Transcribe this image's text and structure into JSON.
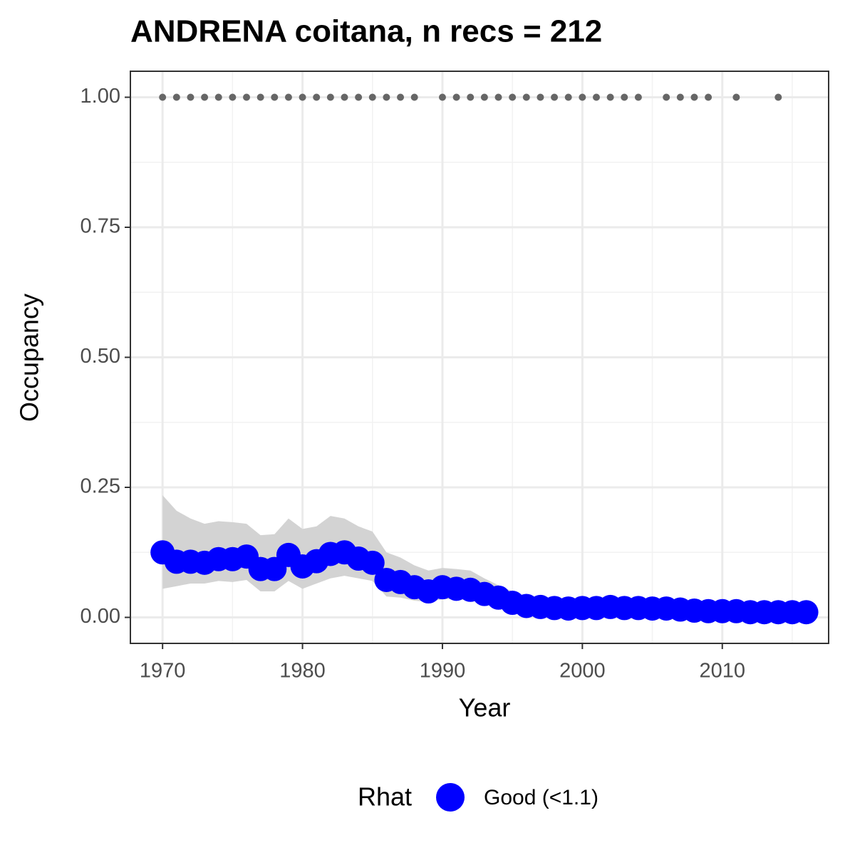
{
  "chart_data": {
    "type": "scatter",
    "title": "ANDRENA coitana, n recs = 212",
    "x_label": "Year",
    "y_label": "Occupancy",
    "xlim": [
      1967.7,
      2017.6
    ],
    "ylim": [
      -0.05,
      1.05
    ],
    "xticks": [
      1970,
      1980,
      1990,
      2000,
      2010
    ],
    "yticks": [
      {
        "value": 0,
        "label": "0.00"
      },
      {
        "value": 0.25,
        "label": "0.25"
      },
      {
        "value": 0.5,
        "label": "0.50"
      },
      {
        "value": 0.75,
        "label": "0.75"
      },
      {
        "value": 1,
        "label": "1.00"
      }
    ],
    "grid": true,
    "legend_title": "Rhat",
    "legend_position": "bottom",
    "x": [
      1970,
      1971,
      1972,
      1973,
      1974,
      1975,
      1976,
      1977,
      1978,
      1979,
      1980,
      1981,
      1982,
      1983,
      1984,
      1985,
      1986,
      1987,
      1988,
      1989,
      1990,
      1991,
      1992,
      1993,
      1994,
      1995,
      1996,
      1997,
      1998,
      1999,
      2000,
      2001,
      2002,
      2003,
      2004,
      2005,
      2006,
      2007,
      2008,
      2009,
      2010,
      2011,
      2012,
      2013,
      2014,
      2015,
      2016
    ],
    "series": [
      {
        "name": "Good (<1.1)",
        "color": "#0000ff",
        "values": [
          0.125,
          0.107,
          0.107,
          0.105,
          0.112,
          0.112,
          0.117,
          0.093,
          0.093,
          0.12,
          0.098,
          0.108,
          0.122,
          0.125,
          0.113,
          0.105,
          0.072,
          0.068,
          0.058,
          0.05,
          0.058,
          0.055,
          0.053,
          0.045,
          0.038,
          0.028,
          0.022,
          0.02,
          0.018,
          0.017,
          0.018,
          0.018,
          0.02,
          0.018,
          0.018,
          0.017,
          0.017,
          0.015,
          0.013,
          0.012,
          0.012,
          0.012,
          0.01,
          0.01,
          0.01,
          0.01,
          0.01
        ]
      }
    ],
    "band": {
      "color": "#d3d3d3",
      "lower": [
        0.055,
        0.06,
        0.065,
        0.065,
        0.07,
        0.068,
        0.072,
        0.05,
        0.05,
        0.07,
        0.055,
        0.065,
        0.075,
        0.08,
        0.075,
        0.07,
        0.04,
        0.038,
        0.032,
        0.03,
        0.035,
        0.035,
        0.033,
        0.025,
        0.02,
        0.015,
        0.012,
        0.01,
        0.01,
        0.009,
        0.009,
        0.01,
        0.01,
        0.009,
        0.009,
        0.008,
        0.008,
        0.007,
        0.006,
        0.005,
        0.005,
        0.005,
        0.004,
        0.004,
        0.004,
        0.004,
        0.004
      ],
      "upper": [
        0.235,
        0.205,
        0.19,
        0.18,
        0.185,
        0.183,
        0.18,
        0.158,
        0.16,
        0.19,
        0.17,
        0.175,
        0.195,
        0.19,
        0.175,
        0.165,
        0.125,
        0.115,
        0.1,
        0.09,
        0.095,
        0.093,
        0.09,
        0.075,
        0.062,
        0.05,
        0.04,
        0.037,
        0.035,
        0.033,
        0.035,
        0.035,
        0.037,
        0.035,
        0.034,
        0.033,
        0.033,
        0.03,
        0.028,
        0.026,
        0.026,
        0.026,
        0.024,
        0.024,
        0.024,
        0.024,
        0.024
      ]
    },
    "records": {
      "color": "#666666",
      "x": [
        1970,
        1971,
        1972,
        1973,
        1974,
        1975,
        1976,
        1977,
        1978,
        1979,
        1980,
        1981,
        1982,
        1983,
        1984,
        1985,
        1986,
        1987,
        1988,
        1990,
        1991,
        1992,
        1993,
        1994,
        1995,
        1996,
        1997,
        1998,
        1999,
        2000,
        2001,
        2002,
        2003,
        2004,
        2006,
        2007,
        2008,
        2009,
        2011,
        2014
      ],
      "values": [
        1,
        1,
        1,
        1,
        1,
        1,
        1,
        1,
        1,
        1,
        1,
        1,
        1,
        1,
        1,
        1,
        1,
        1,
        1,
        1,
        1,
        1,
        1,
        1,
        1,
        1,
        1,
        1,
        1,
        1,
        1,
        1,
        1,
        1,
        1,
        1,
        1,
        1,
        1,
        1
      ]
    }
  }
}
